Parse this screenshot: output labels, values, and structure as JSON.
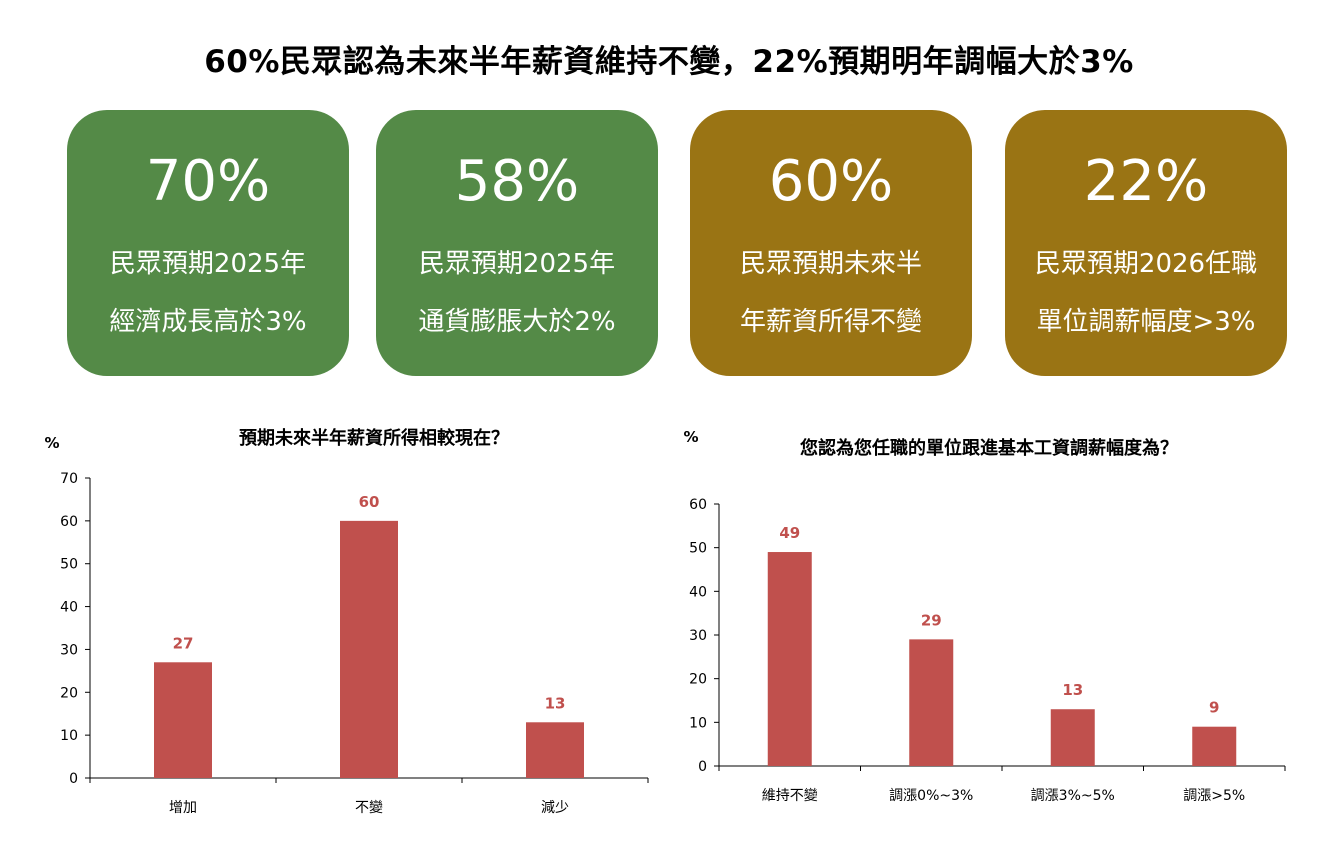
{
  "headline": "60%民眾認為未來半年薪資維持不變，22%預期明年調幅大於3%",
  "cards": [
    {
      "pct": "70%",
      "line1": "民眾預期2025年",
      "line2": "經濟成長高於3%",
      "color": "#548a47"
    },
    {
      "pct": "58%",
      "line1": "民眾預期2025年",
      "line2": "通貨膨脹大於2%",
      "color": "#548a47"
    },
    {
      "pct": "60%",
      "line1": "民眾預期未來半",
      "line2": "年薪資所得不變",
      "color": "#9a7414"
    },
    {
      "pct": "22%",
      "line1": "民眾預期2026任職",
      "line2": "單位調薪幅度>3%",
      "color": "#9a7414"
    }
  ],
  "chart_data": [
    {
      "type": "bar",
      "title": "預期未來半年薪資所得相較現在？",
      "ylabel": "%",
      "xlabel": "",
      "categories": [
        "增加",
        "不變",
        "減少"
      ],
      "values": [
        27,
        60,
        13
      ],
      "ylim": [
        0,
        70
      ],
      "yticks": [
        0,
        10,
        20,
        30,
        40,
        50,
        60,
        70
      ],
      "bar_color": "#c0504d",
      "label_color": "#c0504d",
      "grid": false
    },
    {
      "type": "bar",
      "title": "您認為您任職的單位跟進基本工資調薪幅度為？",
      "ylabel": "%",
      "xlabel": "",
      "categories": [
        "維持不變",
        "調漲0%~3%",
        "調漲3%~5%",
        "調漲>5%"
      ],
      "values": [
        49,
        29,
        13,
        9
      ],
      "ylim": [
        0,
        60
      ],
      "yticks": [
        0,
        10,
        20,
        30,
        40,
        50,
        60
      ],
      "bar_color": "#c0504d",
      "label_color": "#c0504d",
      "grid": false
    }
  ]
}
